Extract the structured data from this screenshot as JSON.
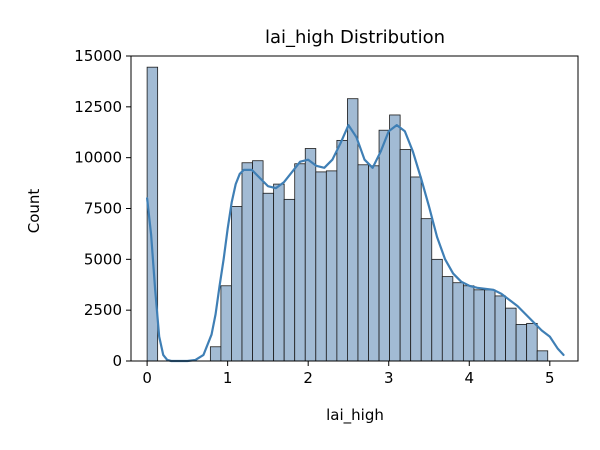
{
  "chart_data": {
    "type": "bar",
    "subtype": "histogram-with-kde",
    "title": "lai_high Distribution",
    "xlabel": "lai_high",
    "ylabel": "Count",
    "xlim": [
      -0.2,
      5.35
    ],
    "ylim": [
      0,
      15000
    ],
    "xticks": [
      0,
      1,
      2,
      3,
      4,
      5
    ],
    "xtick_labels": [
      "0",
      "1",
      "2",
      "3",
      "4",
      "5"
    ],
    "yticks": [
      0,
      2500,
      5000,
      7500,
      10000,
      12500,
      15000
    ],
    "ytick_labels": [
      "0",
      "2500",
      "5000",
      "7500",
      "10000",
      "12500",
      "15000"
    ],
    "grid": false,
    "bar_color": "#a2bbd4",
    "bar_edge_color": "#1a1a1a",
    "kde_color": "#3f7fb5",
    "bins": {
      "start": 0.0,
      "width": 0.1309,
      "counts": [
        14450,
        0,
        0,
        0,
        0,
        0,
        700,
        3700,
        7600,
        9750,
        9850,
        8250,
        8700,
        7950,
        9700,
        10450,
        9300,
        9350,
        10850,
        12900,
        9650,
        9600,
        11350,
        12100,
        10400,
        9050,
        7000,
        5000,
        4150,
        3850,
        3700,
        3500,
        3500,
        3200,
        2600,
        1800,
        1850,
        500
      ]
    },
    "kde": {
      "x": [
        0.0,
        0.05,
        0.1,
        0.15,
        0.2,
        0.25,
        0.3,
        0.4,
        0.5,
        0.6,
        0.7,
        0.8,
        0.85,
        0.9,
        0.95,
        1.0,
        1.05,
        1.1,
        1.15,
        1.2,
        1.3,
        1.4,
        1.5,
        1.6,
        1.7,
        1.8,
        1.9,
        2.0,
        2.1,
        2.2,
        2.3,
        2.4,
        2.5,
        2.6,
        2.7,
        2.8,
        2.9,
        3.0,
        3.1,
        3.2,
        3.3,
        3.4,
        3.5,
        3.6,
        3.7,
        3.8,
        3.9,
        4.0,
        4.1,
        4.2,
        4.3,
        4.4,
        4.5,
        4.6,
        4.7,
        4.8,
        4.9,
        5.0,
        5.1,
        5.17
      ],
      "y": [
        8000,
        6200,
        3500,
        1200,
        300,
        50,
        0,
        0,
        0,
        50,
        300,
        1300,
        2300,
        3700,
        5000,
        6500,
        7800,
        8700,
        9200,
        9400,
        9400,
        9000,
        8600,
        8500,
        8800,
        9300,
        9800,
        9900,
        9600,
        9500,
        9900,
        10700,
        11600,
        11000,
        9900,
        9500,
        10300,
        11300,
        11600,
        11300,
        10300,
        9000,
        7600,
        6100,
        5000,
        4300,
        3900,
        3700,
        3600,
        3550,
        3500,
        3300,
        3000,
        2700,
        2300,
        1900,
        1500,
        1200,
        600,
        300
      ]
    }
  }
}
